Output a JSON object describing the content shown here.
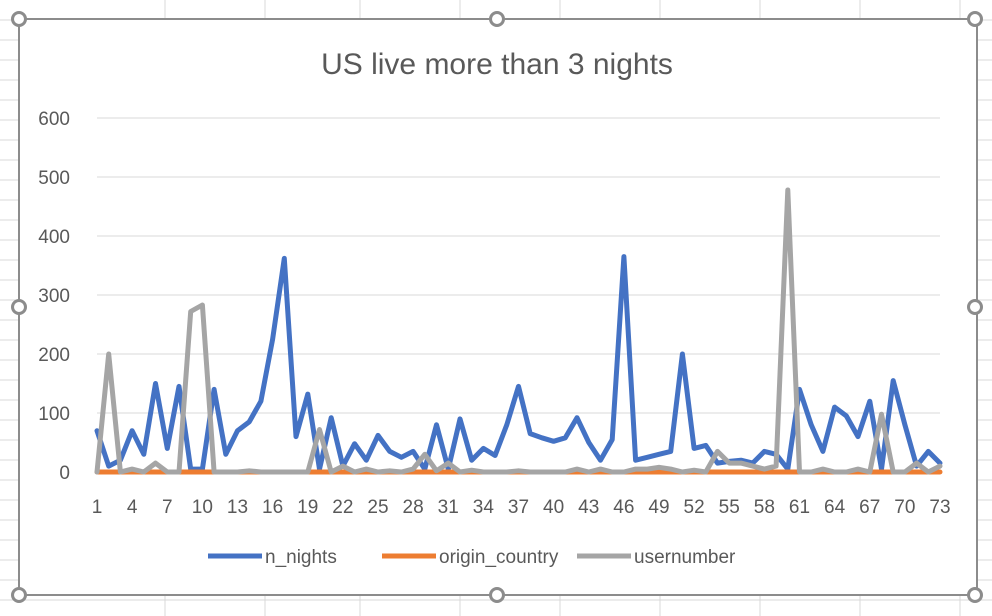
{
  "chart_data": {
    "type": "line",
    "title": "US live more than 3 nights",
    "ylim": [
      0,
      600
    ],
    "y_ticks": [
      "0",
      "100",
      "200",
      "300",
      "400",
      "500",
      "600"
    ],
    "x": [
      1,
      2,
      3,
      4,
      5,
      6,
      7,
      8,
      9,
      10,
      11,
      12,
      13,
      14,
      15,
      16,
      17,
      18,
      19,
      20,
      21,
      22,
      23,
      24,
      25,
      26,
      27,
      28,
      29,
      30,
      31,
      32,
      33,
      34,
      35,
      36,
      37,
      38,
      39,
      40,
      41,
      42,
      43,
      44,
      45,
      46,
      47,
      48,
      49,
      50,
      51,
      52,
      53,
      54,
      55,
      56,
      57,
      58,
      59,
      60,
      61,
      62,
      63,
      64,
      65,
      66,
      67,
      68,
      69,
      70,
      71,
      72,
      73
    ],
    "x_tick_labels": [
      "1",
      "4",
      "7",
      "10",
      "13",
      "16",
      "19",
      "22",
      "25",
      "28",
      "31",
      "34",
      "37",
      "40",
      "43",
      "46",
      "49",
      "52",
      "55",
      "58",
      "61",
      "64",
      "67",
      "70",
      "73"
    ],
    "legend_position": "bottom",
    "grid": true,
    "series": [
      {
        "name": "n_nights",
        "color": "#4472C4",
        "values": [
          70,
          10,
          20,
          70,
          30,
          150,
          40,
          145,
          5,
          5,
          140,
          30,
          70,
          85,
          120,
          225,
          362,
          60,
          132,
          5,
          92,
          10,
          48,
          20,
          62,
          35,
          25,
          35,
          5,
          80,
          5,
          90,
          20,
          40,
          28,
          80,
          145,
          65,
          58,
          52,
          58,
          92,
          50,
          20,
          55,
          365,
          20,
          25,
          30,
          35,
          200,
          40,
          45,
          15,
          18,
          20,
          15,
          35,
          30,
          5,
          140,
          80,
          35,
          110,
          95,
          60,
          120,
          5,
          155,
          80,
          10,
          35,
          15
        ]
      },
      {
        "name": "origin_country",
        "color": "#ED7D31",
        "values": [
          0,
          0,
          0,
          0,
          0,
          0,
          0,
          0,
          0,
          0,
          0,
          0,
          0,
          0,
          0,
          0,
          0,
          0,
          0,
          0,
          0,
          0,
          0,
          0,
          0,
          0,
          0,
          0,
          0,
          0,
          0,
          0,
          0,
          0,
          0,
          0,
          0,
          0,
          0,
          0,
          0,
          0,
          0,
          0,
          0,
          0,
          0,
          0,
          0,
          0,
          0,
          0,
          0,
          0,
          0,
          0,
          0,
          0,
          0,
          0,
          0,
          0,
          0,
          0,
          0,
          0,
          0,
          0,
          0,
          0,
          0,
          0,
          0
        ]
      },
      {
        "name": "usernumber",
        "color": "#A5A5A5",
        "values": [
          0,
          200,
          0,
          5,
          0,
          15,
          0,
          0,
          272,
          283,
          0,
          0,
          0,
          2,
          0,
          0,
          0,
          0,
          0,
          72,
          0,
          10,
          0,
          5,
          0,
          2,
          0,
          5,
          30,
          2,
          15,
          0,
          3,
          0,
          0,
          0,
          2,
          0,
          0,
          0,
          0,
          5,
          0,
          5,
          0,
          0,
          5,
          5,
          8,
          5,
          0,
          3,
          0,
          35,
          15,
          15,
          10,
          5,
          10,
          478,
          0,
          0,
          5,
          0,
          0,
          5,
          0,
          98,
          0,
          0,
          15,
          0,
          10
        ]
      }
    ]
  }
}
